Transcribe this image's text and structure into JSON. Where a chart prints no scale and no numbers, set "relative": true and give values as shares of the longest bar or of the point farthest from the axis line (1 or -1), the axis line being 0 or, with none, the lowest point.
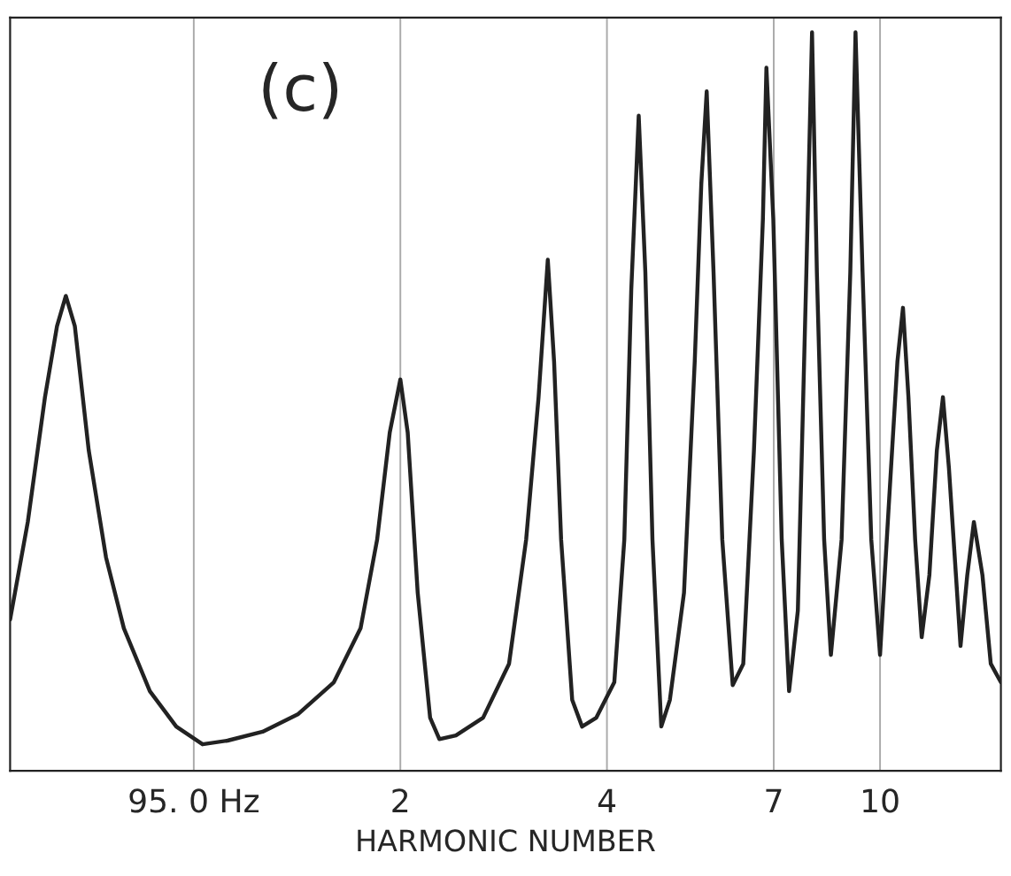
{
  "chart_data": {
    "type": "line",
    "relative": true,
    "log": "x",
    "xlabel": "HARMONIC NUMBER",
    "annotations": [
      "(c)"
    ],
    "xlim": [
      0.54,
      15.0
    ],
    "xticks": [
      {
        "value": 1,
        "label": "95. 0 Hz"
      },
      2,
      4,
      7,
      10
    ],
    "grid": "x",
    "line_style": "solid",
    "marker": "none",
    "series": [
      {
        "color": "#222222",
        "x": [
          0.54,
          0.573,
          0.607,
          0.632,
          0.651,
          0.671,
          0.703,
          0.745,
          0.791,
          0.863,
          0.943,
          1.03,
          1.12,
          1.26,
          1.42,
          1.6,
          1.75,
          1.85,
          1.93,
          2.0,
          2.05,
          2.12,
          2.21,
          2.28,
          2.41,
          2.64,
          2.88,
          3.05,
          3.18,
          3.28,
          3.35,
          3.43,
          3.56,
          3.68,
          3.86,
          4.1,
          4.24,
          4.34,
          4.45,
          4.55,
          4.66,
          4.8,
          4.94,
          5.18,
          5.37,
          5.49,
          5.59,
          5.72,
          5.89,
          6.1,
          6.32,
          6.55,
          6.75,
          6.83,
          6.99,
          7.19,
          7.37,
          7.59,
          7.81,
          7.96,
          8.09,
          8.29,
          8.48,
          8.79,
          9.05,
          9.21,
          9.43,
          9.71,
          10.0,
          10.3,
          10.6,
          10.8,
          11.0,
          11.25,
          11.5,
          11.8,
          12.1,
          12.35,
          12.6,
          12.9,
          13.1,
          13.4,
          13.7,
          14.1,
          14.5,
          15.0
        ],
        "values": [
          0.205,
          0.337,
          0.506,
          0.602,
          0.643,
          0.602,
          0.434,
          0.289,
          0.193,
          0.108,
          0.06,
          0.036,
          0.041,
          0.053,
          0.077,
          0.12,
          0.193,
          0.313,
          0.458,
          0.53,
          0.458,
          0.241,
          0.072,
          0.043,
          0.048,
          0.072,
          0.145,
          0.313,
          0.506,
          0.692,
          0.554,
          0.313,
          0.096,
          0.06,
          0.072,
          0.12,
          0.313,
          0.651,
          0.887,
          0.675,
          0.313,
          0.06,
          0.096,
          0.241,
          0.554,
          0.795,
          0.92,
          0.675,
          0.313,
          0.116,
          0.145,
          0.434,
          0.747,
          0.952,
          0.747,
          0.313,
          0.108,
          0.217,
          0.675,
          1.0,
          0.675,
          0.313,
          0.157,
          0.313,
          0.675,
          1.0,
          0.675,
          0.313,
          0.157,
          0.361,
          0.554,
          0.627,
          0.506,
          0.313,
          0.181,
          0.265,
          0.434,
          0.506,
          0.41,
          0.265,
          0.169,
          0.265,
          0.337,
          0.265,
          0.145,
          0.12
        ]
      }
    ]
  }
}
